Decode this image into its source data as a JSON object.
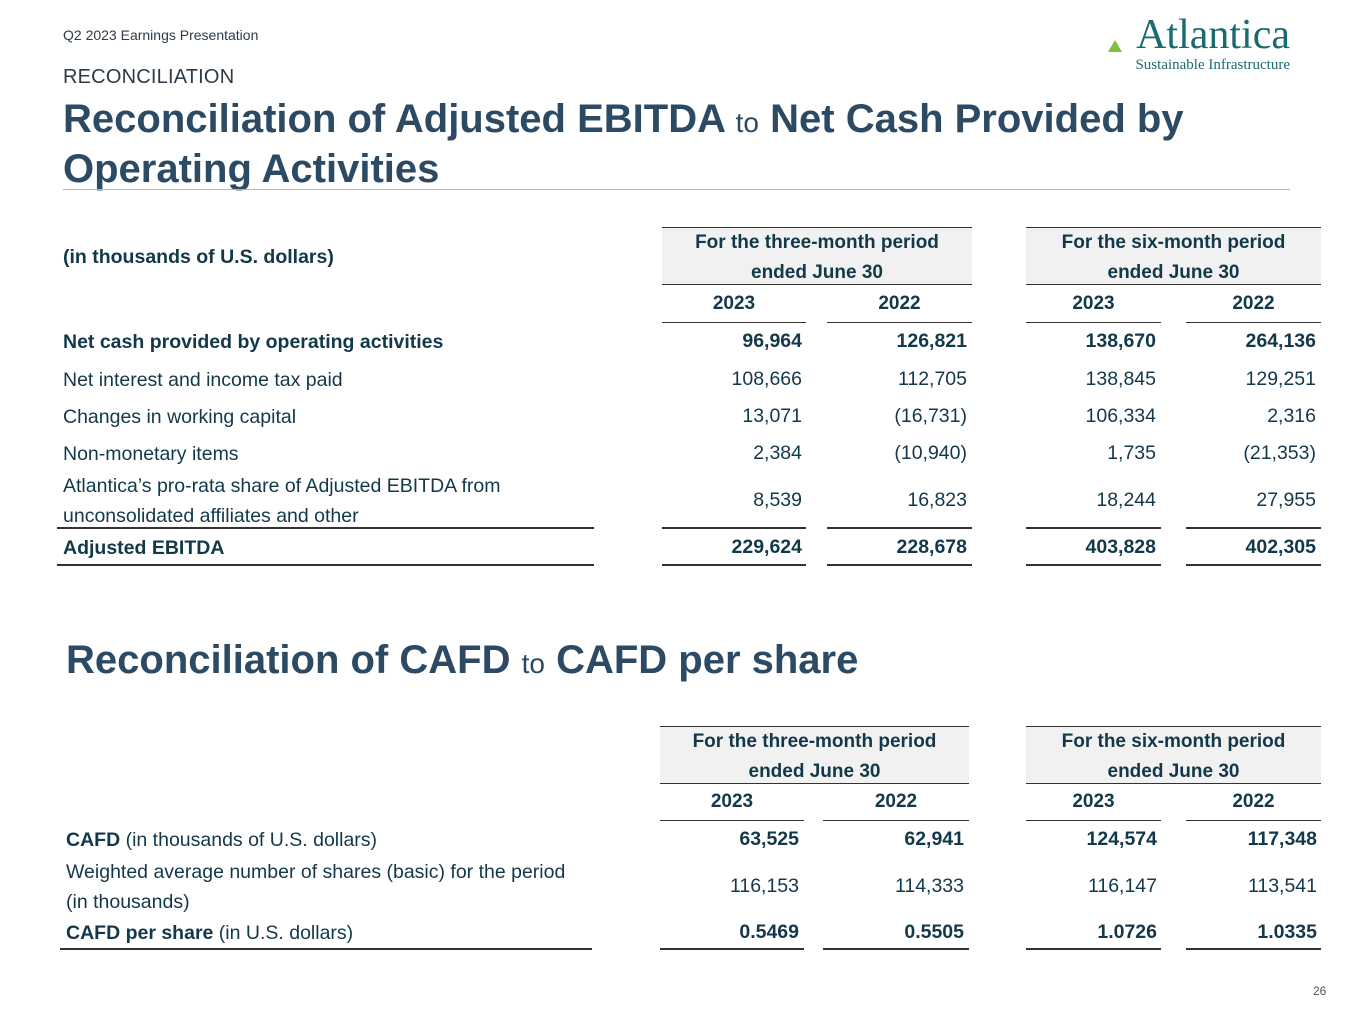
{
  "header": {
    "presentation": "Q2 2023 Earnings Presentation",
    "section": "RECONCILIATION",
    "logo_word": "Atlantica",
    "logo_sub": "Sustainable Infrastructure",
    "page_number": "26"
  },
  "ebitda_table": {
    "title_part1": "Reconciliation of Adjusted EBITDA",
    "title_to": "to",
    "title_part2": "Net Cash Provided by Operating Activities",
    "units_label": "(in thousands of U.S. dollars)",
    "group1": "For the three-month period ended June 30",
    "group2": "For the six-month period ended June 30",
    "years": [
      "2023",
      "2022",
      "2023",
      "2022"
    ],
    "rows": [
      {
        "label": "Net cash provided by operating activities",
        "values": [
          "96,964",
          "126,821",
          "138,670",
          "264,136"
        ]
      },
      {
        "label": "Net interest and income tax paid",
        "values": [
          "108,666",
          "112,705",
          "138,845",
          "129,251"
        ]
      },
      {
        "label": "Changes in working capital",
        "values": [
          "13,071",
          "(16,731)",
          "106,334",
          "2,316"
        ]
      },
      {
        "label": "Non-monetary items",
        "values": [
          "2,384",
          "(10,940)",
          "1,735",
          "(21,353)"
        ]
      },
      {
        "label": "Atlantica’s pro-rata share of Adjusted EBITDA from unconsolidated affiliates and other",
        "values": [
          "8,539",
          "16,823",
          "18,244",
          "27,955"
        ]
      },
      {
        "label": "Adjusted EBITDA",
        "values": [
          "229,624",
          "228,678",
          "403,828",
          "402,305"
        ]
      }
    ]
  },
  "cafd_table": {
    "title_part1": "Reconciliation of CAFD",
    "title_to": "to",
    "title_part2": "CAFD per share",
    "group1": "For the three-month period ended June 30",
    "group2": "For the six-month period ended June 30",
    "years": [
      "2023",
      "2022",
      "2023",
      "2022"
    ],
    "rows": [
      {
        "label_bold": "CAFD",
        "label_rest": "(in thousands of U.S. dollars)",
        "values": [
          "63,525",
          "62,941",
          "124,574",
          "117,348"
        ]
      },
      {
        "label": "Weighted average number of shares (basic) for the period (in thousands)",
        "values": [
          "116,153",
          "114,333",
          "116,147",
          "113,541"
        ]
      },
      {
        "label_bold": "CAFD per share",
        "label_rest": "(in U.S. dollars)",
        "values": [
          "0.5469",
          "0.5505",
          "1.0726",
          "1.0335"
        ]
      }
    ]
  }
}
